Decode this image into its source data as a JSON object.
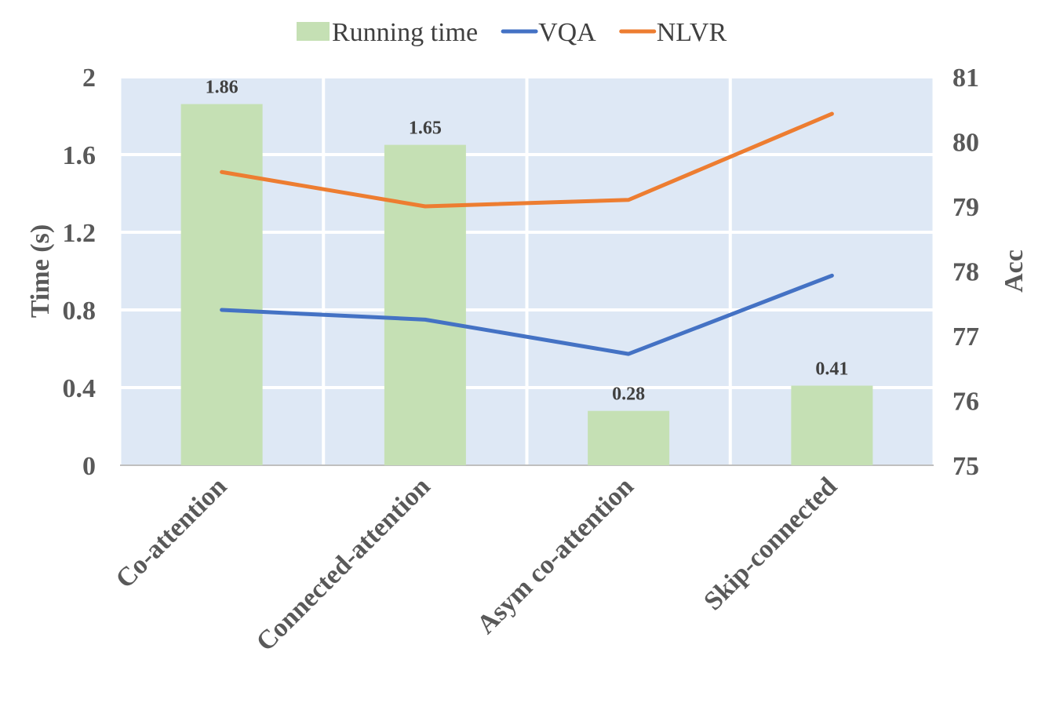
{
  "chart_data": {
    "type": "bar",
    "categories": [
      "Co-attention",
      "Connected-attention",
      "Asym co-attention",
      "Skip-connected"
    ],
    "bars": {
      "name": "Running time",
      "values": [
        1.86,
        1.65,
        0.28,
        0.41
      ],
      "labels": [
        "1.86",
        "1.65",
        "0.28",
        "0.41"
      ],
      "color": "#c5e0b4"
    },
    "lines": [
      {
        "name": "VQA",
        "values": [
          77.4,
          77.25,
          76.72,
          77.93
        ],
        "color": "#4472c4"
      },
      {
        "name": "NLVR",
        "values": [
          79.53,
          79.0,
          79.1,
          80.43
        ],
        "color": "#ed7d31"
      }
    ],
    "ylabel_left": "Time (s)",
    "ylabel_right": "Acc",
    "ylim_left": [
      0,
      2
    ],
    "ylim_right": [
      75,
      81
    ],
    "yticks_left": [
      "0",
      "0.4",
      "0.8",
      "1.2",
      "1.6",
      "2"
    ],
    "yticks_right": [
      "75",
      "76",
      "77",
      "78",
      "79",
      "80",
      "81"
    ],
    "plot_background": "#dee8f5",
    "grid": true,
    "legend_position": "top"
  }
}
